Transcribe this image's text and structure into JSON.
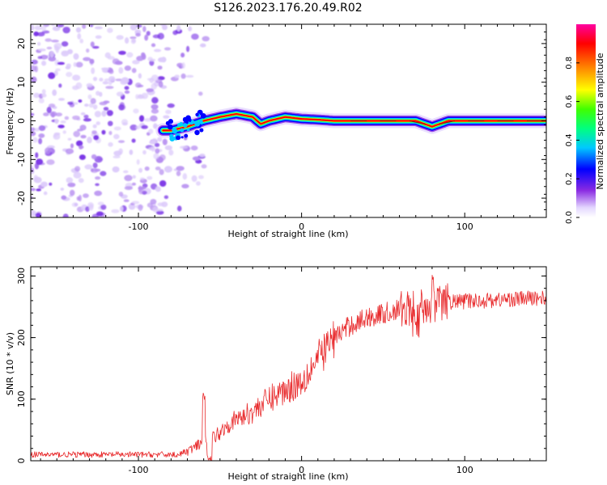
{
  "title": "S126.2023.176.20.49.R02",
  "colors": {
    "snr_line": "#e8292b",
    "dust": "#7a34e6",
    "colormap": [
      "#ffffff",
      "#e4d8ff",
      "#8a2be2",
      "#0000ff",
      "#00c8ff",
      "#00ff80",
      "#40ff00",
      "#ffff00",
      "#ff8000",
      "#ff0000",
      "#ff00a0"
    ]
  },
  "chart_data": [
    {
      "type": "heatmap",
      "xlabel": "Height of straight line (km)",
      "ylabel": "Frequency (Hz)",
      "xlim": [
        -166,
        150
      ],
      "ylim": [
        -25,
        25
      ],
      "x_ticks": [
        -100,
        0,
        100
      ],
      "y_ticks": [
        -20,
        -10,
        0,
        10,
        20
      ],
      "colorbar": {
        "label": "Normalized spectral amplitude",
        "ticks": [
          "0.0",
          "0.2",
          "0.4",
          "0.6",
          "0.8"
        ],
        "range": [
          0,
          1
        ]
      },
      "signal_track": [
        {
          "x": -80,
          "f": -2.5
        },
        {
          "x": -70,
          "f": -1.5
        },
        {
          "x": -60,
          "f": 0.0
        },
        {
          "x": -50,
          "f": 1.0
        },
        {
          "x": -40,
          "f": 1.8
        },
        {
          "x": -30,
          "f": 1.0
        },
        {
          "x": -25,
          "f": -0.8
        },
        {
          "x": -20,
          "f": 0.0
        },
        {
          "x": -10,
          "f": 1.0
        },
        {
          "x": 0,
          "f": 0.5
        },
        {
          "x": 10,
          "f": 0.3
        },
        {
          "x": 20,
          "f": 0.0
        },
        {
          "x": 60,
          "f": 0.0
        },
        {
          "x": 70,
          "f": 0.0
        },
        {
          "x": 80,
          "f": -1.5
        },
        {
          "x": 90,
          "f": 0.0
        },
        {
          "x": 150,
          "f": 0.0
        }
      ]
    },
    {
      "type": "line",
      "xlabel": "Height of straight line (km)",
      "ylabel": "SNR (10 * v/v)",
      "xlim": [
        -166,
        150
      ],
      "ylim": [
        0,
        315
      ],
      "x_ticks": [
        -100,
        0,
        100
      ],
      "y_ticks": [
        0,
        100,
        200,
        300
      ],
      "trend": [
        {
          "x": -166,
          "y": 10
        },
        {
          "x": -75,
          "y": 10
        },
        {
          "x": -65,
          "y": 22
        },
        {
          "x": -55,
          "y": 35
        },
        {
          "x": -45,
          "y": 60
        },
        {
          "x": -30,
          "y": 80
        },
        {
          "x": -20,
          "y": 100
        },
        {
          "x": -10,
          "y": 115
        },
        {
          "x": 0,
          "y": 130
        },
        {
          "x": 10,
          "y": 165
        },
        {
          "x": 20,
          "y": 200
        },
        {
          "x": 30,
          "y": 220
        },
        {
          "x": 40,
          "y": 232
        },
        {
          "x": 60,
          "y": 245
        },
        {
          "x": 70,
          "y": 250
        },
        {
          "x": 80,
          "y": 255
        },
        {
          "x": 90,
          "y": 258
        },
        {
          "x": 110,
          "y": 260
        },
        {
          "x": 150,
          "y": 265
        }
      ],
      "features": [
        {
          "x": -60,
          "peak": 110
        },
        {
          "x": -57,
          "dip": 0
        },
        {
          "x": 80,
          "peak": 315
        },
        {
          "x": 70,
          "dip": 185
        }
      ]
    }
  ]
}
